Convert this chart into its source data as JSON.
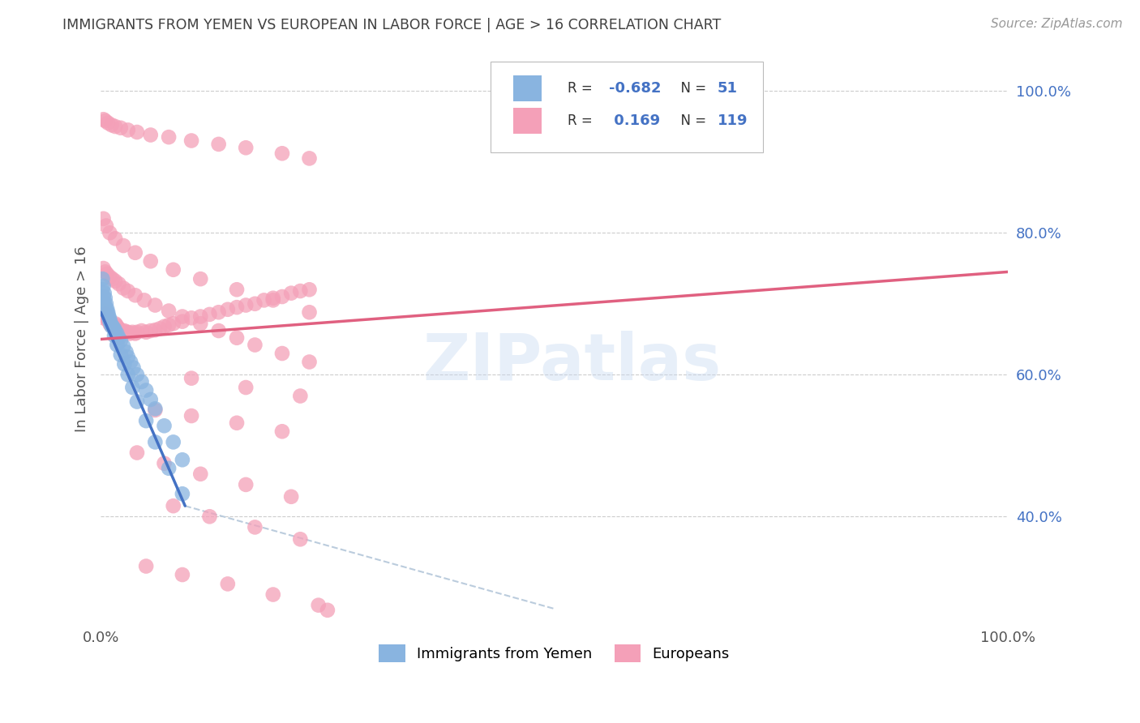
{
  "title": "IMMIGRANTS FROM YEMEN VS EUROPEAN IN LABOR FORCE | AGE > 16 CORRELATION CHART",
  "source": "Source: ZipAtlas.com",
  "ylabel": "In Labor Force | Age > 16",
  "yemen_color": "#89b4e0",
  "european_color": "#f4a0b8",
  "yemen_line_color": "#4472c4",
  "european_line_color": "#e06080",
  "extension_line_color": "#bbccdd",
  "watermark_text": "ZIPatlas",
  "background_color": "#ffffff",
  "grid_color": "#cccccc",
  "title_color": "#404040",
  "source_color": "#999999",
  "right_axis_color": "#4472c4",
  "yemen_r": "-0.682",
  "yemen_n": "51",
  "european_r": "0.169",
  "european_n": "119",
  "ylim": [
    0.25,
    1.05
  ],
  "xlim": [
    0.0,
    1.0
  ],
  "yticks": [
    1.0,
    0.8,
    0.6,
    0.4
  ],
  "ytick_labels": [
    "100.0%",
    "80.0%",
    "60.0%",
    "40.0%"
  ],
  "xticks": [
    0.0,
    1.0
  ],
  "xtick_labels": [
    "0.0%",
    "100.0%"
  ],
  "yemen_scatter_x": [
    0.002,
    0.003,
    0.004,
    0.005,
    0.006,
    0.007,
    0.008,
    0.009,
    0.01,
    0.011,
    0.012,
    0.013,
    0.015,
    0.016,
    0.018,
    0.02,
    0.022,
    0.025,
    0.028,
    0.03,
    0.033,
    0.036,
    0.04,
    0.045,
    0.05,
    0.055,
    0.06,
    0.07,
    0.08,
    0.09,
    0.002,
    0.003,
    0.004,
    0.005,
    0.006,
    0.007,
    0.008,
    0.009,
    0.01,
    0.012,
    0.015,
    0.018,
    0.022,
    0.026,
    0.03,
    0.035,
    0.04,
    0.05,
    0.06,
    0.075,
    0.09
  ],
  "yemen_scatter_y": [
    0.72,
    0.71,
    0.7,
    0.695,
    0.69,
    0.688,
    0.685,
    0.68,
    0.675,
    0.672,
    0.67,
    0.668,
    0.665,
    0.662,
    0.658,
    0.652,
    0.648,
    0.64,
    0.632,
    0.625,
    0.618,
    0.61,
    0.6,
    0.59,
    0.578,
    0.565,
    0.552,
    0.528,
    0.505,
    0.48,
    0.735,
    0.725,
    0.715,
    0.708,
    0.7,
    0.693,
    0.688,
    0.682,
    0.678,
    0.668,
    0.655,
    0.642,
    0.628,
    0.615,
    0.6,
    0.582,
    0.562,
    0.535,
    0.505,
    0.468,
    0.432
  ],
  "european_scatter_x": [
    0.003,
    0.004,
    0.005,
    0.006,
    0.007,
    0.008,
    0.009,
    0.01,
    0.011,
    0.012,
    0.013,
    0.014,
    0.015,
    0.016,
    0.017,
    0.018,
    0.019,
    0.02,
    0.022,
    0.024,
    0.026,
    0.028,
    0.03,
    0.032,
    0.035,
    0.038,
    0.04,
    0.045,
    0.05,
    0.055,
    0.06,
    0.065,
    0.07,
    0.075,
    0.08,
    0.09,
    0.1,
    0.11,
    0.12,
    0.13,
    0.14,
    0.15,
    0.16,
    0.17,
    0.18,
    0.19,
    0.2,
    0.21,
    0.22,
    0.23,
    0.003,
    0.005,
    0.007,
    0.01,
    0.013,
    0.016,
    0.02,
    0.025,
    0.03,
    0.038,
    0.048,
    0.06,
    0.075,
    0.09,
    0.11,
    0.13,
    0.15,
    0.17,
    0.2,
    0.23,
    0.003,
    0.005,
    0.008,
    0.012,
    0.016,
    0.022,
    0.03,
    0.04,
    0.055,
    0.075,
    0.1,
    0.13,
    0.16,
    0.2,
    0.23,
    0.003,
    0.006,
    0.01,
    0.016,
    0.025,
    0.038,
    0.055,
    0.08,
    0.11,
    0.15,
    0.19,
    0.23,
    0.1,
    0.16,
    0.22,
    0.04,
    0.07,
    0.11,
    0.16,
    0.21,
    0.06,
    0.1,
    0.15,
    0.2,
    0.08,
    0.12,
    0.17,
    0.22,
    0.05,
    0.09,
    0.14,
    0.19,
    0.24,
    0.25
  ],
  "european_scatter_y": [
    0.68,
    0.69,
    0.685,
    0.682,
    0.68,
    0.678,
    0.675,
    0.672,
    0.67,
    0.67,
    0.668,
    0.67,
    0.668,
    0.672,
    0.67,
    0.668,
    0.665,
    0.665,
    0.662,
    0.66,
    0.662,
    0.66,
    0.66,
    0.658,
    0.66,
    0.658,
    0.66,
    0.662,
    0.66,
    0.662,
    0.663,
    0.665,
    0.668,
    0.67,
    0.672,
    0.675,
    0.68,
    0.682,
    0.685,
    0.688,
    0.692,
    0.695,
    0.698,
    0.7,
    0.705,
    0.708,
    0.71,
    0.715,
    0.718,
    0.72,
    0.75,
    0.745,
    0.742,
    0.738,
    0.735,
    0.732,
    0.728,
    0.722,
    0.718,
    0.712,
    0.705,
    0.698,
    0.69,
    0.682,
    0.672,
    0.662,
    0.652,
    0.642,
    0.63,
    0.618,
    0.96,
    0.958,
    0.955,
    0.952,
    0.95,
    0.948,
    0.945,
    0.942,
    0.938,
    0.935,
    0.93,
    0.925,
    0.92,
    0.912,
    0.905,
    0.82,
    0.81,
    0.8,
    0.792,
    0.782,
    0.772,
    0.76,
    0.748,
    0.735,
    0.72,
    0.705,
    0.688,
    0.595,
    0.582,
    0.57,
    0.49,
    0.475,
    0.46,
    0.445,
    0.428,
    0.55,
    0.542,
    0.532,
    0.52,
    0.415,
    0.4,
    0.385,
    0.368,
    0.33,
    0.318,
    0.305,
    0.29,
    0.275,
    0.268
  ],
  "yemen_line_x": [
    0.0,
    0.093
  ],
  "yemen_line_y": [
    0.688,
    0.415
  ],
  "extension_line_x": [
    0.093,
    0.5
  ],
  "extension_line_y": [
    0.415,
    0.27
  ],
  "european_line_x": [
    0.0,
    1.0
  ],
  "european_line_y": [
    0.65,
    0.745
  ]
}
